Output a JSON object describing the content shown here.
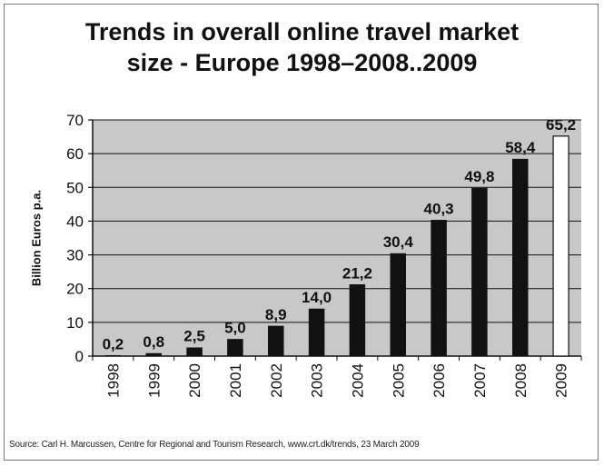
{
  "chart_data": {
    "type": "bar",
    "title_lines": [
      "Trends in overall online travel market",
      "size - Europe 1998–2008..2009"
    ],
    "ylabel": "Billion Euros p.a.",
    "xlabel": "",
    "categories": [
      "1998",
      "1999",
      "2000",
      "2001",
      "2002",
      "2003",
      "2004",
      "2005",
      "2006",
      "2007",
      "2008",
      "2009"
    ],
    "values": [
      0.2,
      0.8,
      2.5,
      5.0,
      8.9,
      14.0,
      21.2,
      30.4,
      40.3,
      49.8,
      58.4,
      65.2
    ],
    "value_labels": [
      "0,2",
      "0,8",
      "2,5",
      "5,0",
      "8,9",
      "14,0",
      "21,2",
      "30,4",
      "40,3",
      "49,8",
      "58,4",
      "65,2"
    ],
    "forecast": [
      false,
      false,
      false,
      false,
      false,
      false,
      false,
      false,
      false,
      false,
      false,
      true
    ],
    "ylim": [
      0,
      70
    ],
    "yticks": [
      0,
      10,
      20,
      30,
      40,
      50,
      60,
      70
    ],
    "grid": true,
    "colors": {
      "bar": "#111111",
      "forecast_bar": "#ffffff",
      "plot_bg": "#c8c8c8",
      "grid": "#111111"
    }
  },
  "source": "Source: Carl H. Marcussen, Centre for Regional and Tourism Research, www.crt.dk/trends, 23 March 2009"
}
